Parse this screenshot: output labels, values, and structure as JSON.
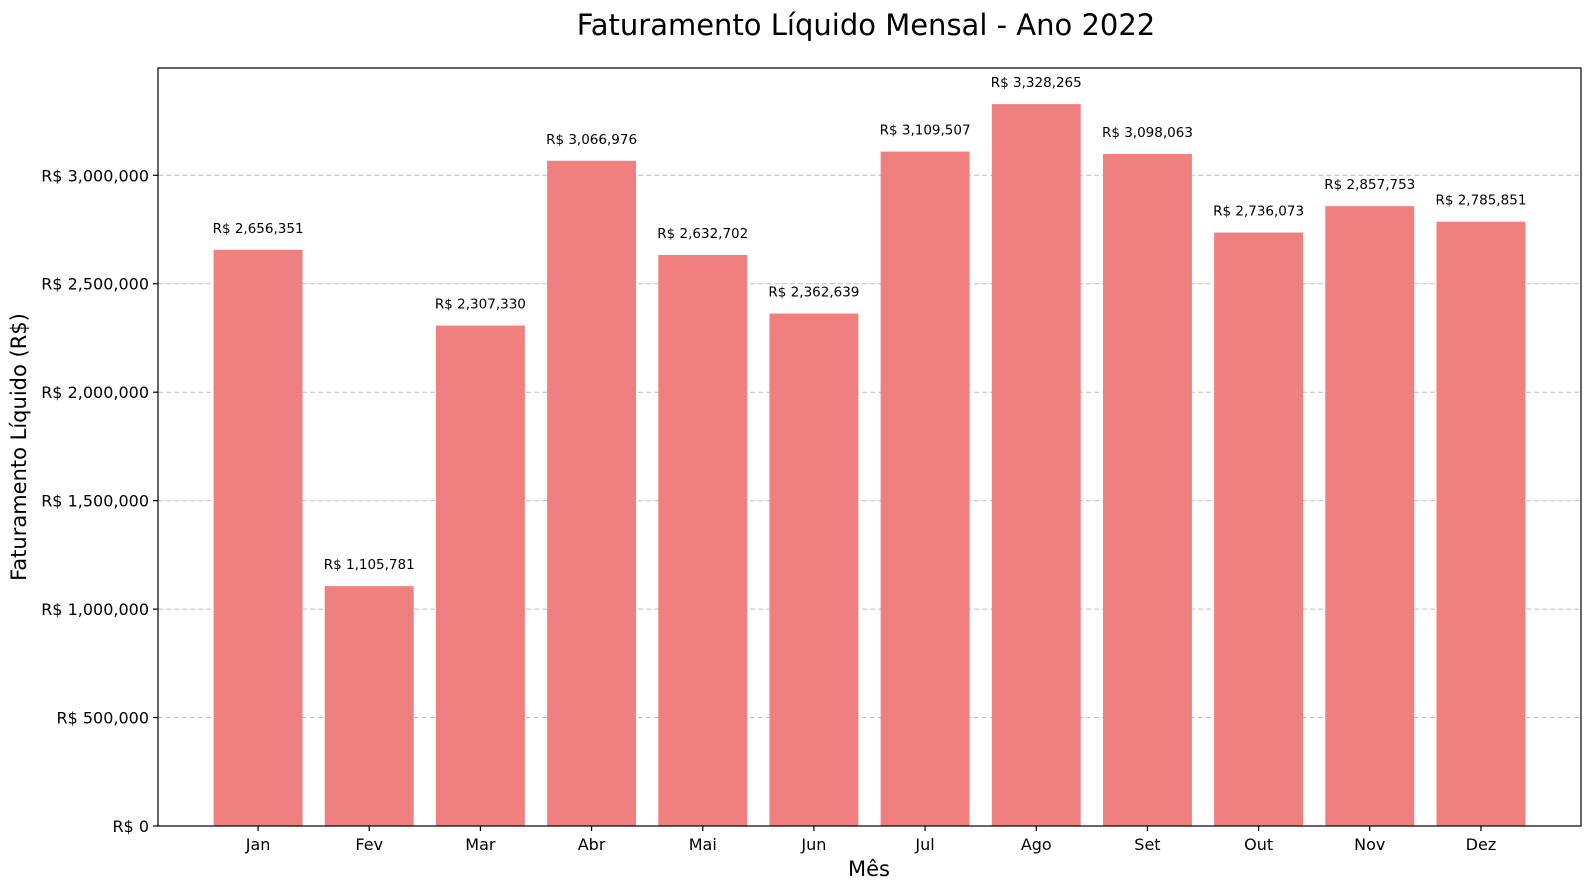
{
  "chart_data": {
    "type": "bar",
    "title": "Faturamento Líquido Mensal - Ano 2022",
    "xlabel": "Mês",
    "ylabel": "Faturamento Líquido (R$)",
    "categories": [
      "Jan",
      "Fev",
      "Mar",
      "Abr",
      "Mai",
      "Jun",
      "Jul",
      "Ago",
      "Set",
      "Out",
      "Nov",
      "Dez"
    ],
    "values": [
      2656351,
      1105781,
      2307330,
      3066976,
      2632702,
      2362639,
      3109507,
      3328265,
      3098063,
      2736073,
      2857753,
      2785851
    ],
    "value_labels": [
      "R$ 2,656,351",
      "R$ 1,105,781",
      "R$ 2,307,330",
      "R$ 3,066,976",
      "R$ 2,632,702",
      "R$ 2,362,639",
      "R$ 3,109,507",
      "R$ 3,328,265",
      "R$ 3,098,063",
      "R$ 2,736,073",
      "R$ 2,857,753",
      "R$ 2,785,851"
    ],
    "yticks": [
      0,
      500000,
      1000000,
      1500000,
      2000000,
      2500000,
      3000000
    ],
    "ytick_labels": [
      "R$ 0",
      "R$ 500,000",
      "R$ 1,000,000",
      "R$ 1,500,000",
      "R$ 2,000,000",
      "R$ 2,500,000",
      "R$ 3,000,000"
    ],
    "ylim": [
      0,
      3494678
    ],
    "grid": "y-dashed",
    "bar_color": "#f08080"
  }
}
